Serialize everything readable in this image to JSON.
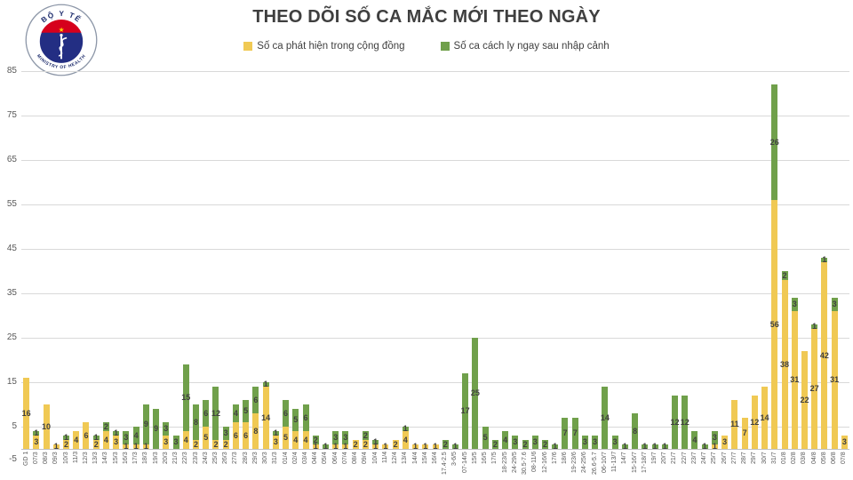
{
  "logo": {
    "top_text": "BỘ Y TẾ",
    "bottom_text": "MINISTRY OF HEALTH",
    "ring_color": "#8d97a8",
    "disc_color": "#232e83",
    "band_color": "#d6001c",
    "star_color": "#ffd500"
  },
  "chart_data": {
    "type": "bar",
    "stacked": true,
    "title": "THEO DÕI SỐ CA MẮC MỚI THEO NGÀY",
    "legend_position": "top",
    "grid": true,
    "grid_color": "#d9d9d9",
    "ylim": [
      -5,
      85
    ],
    "y_ticks": [
      85,
      75,
      65,
      55,
      45,
      35,
      25,
      15,
      5,
      -5
    ],
    "categories": [
      "GD 1",
      "07/3",
      "08/3",
      "09/3",
      "10/3",
      "11/3",
      "12/3",
      "13/3",
      "14/3",
      "15/3",
      "16/3",
      "17/3",
      "18/3",
      "19/3",
      "20/3",
      "21/3",
      "22/3",
      "23/3",
      "24/3",
      "25/3",
      "26/3",
      "27/3",
      "28/3",
      "29/3",
      "30/3",
      "31/3",
      "01/4",
      "02/4",
      "03/4",
      "04/4",
      "05/4",
      "06/4",
      "07/4",
      "08/4",
      "09/4",
      "10/4",
      "11/4",
      "12/4",
      "13/4",
      "14/4",
      "15/4",
      "16/4",
      "17.4-2.5",
      "3-6/5",
      "07-14/5",
      "15/5",
      "16/5",
      "17/5",
      "18-23/5",
      "24-29/5",
      "30.5-7.6",
      "08-11/6",
      "12-16/6",
      "17/6",
      "18/6",
      "19-23/6",
      "24-25/6",
      "26.6-5.7",
      "06-10/7",
      "11-13/7",
      "14/7",
      "15-16/7",
      "17-18/7",
      "19/7",
      "20/7",
      "21/7",
      "22/7",
      "23/7",
      "24/7",
      "25/7",
      "26/7",
      "27/7",
      "28/7",
      "29/7",
      "30/7",
      "31/7",
      "01/8",
      "02/8",
      "03/8",
      "04/8",
      "05/8",
      "06/8",
      "07/8"
    ],
    "series": [
      {
        "name": "Số ca phát hiện trong cộng đồng",
        "color": "#F0C954",
        "values": [
          16,
          3,
          10,
          1,
          2,
          4,
          6,
          2,
          4,
          3,
          1,
          1,
          1,
          0,
          3,
          0,
          4,
          2,
          5,
          2,
          2,
          6,
          6,
          8,
          14,
          3,
          5,
          4,
          4,
          1,
          0,
          1,
          1,
          2,
          2,
          1,
          1,
          2,
          4,
          1,
          1,
          1,
          0,
          0,
          0,
          0,
          0,
          0,
          0,
          0,
          0,
          0,
          0,
          0,
          0,
          0,
          0,
          0,
          0,
          0,
          0,
          0,
          0,
          0,
          0,
          0,
          0,
          0,
          0,
          1,
          3,
          11,
          7,
          12,
          14,
          56,
          38,
          31,
          22,
          27,
          42,
          31,
          3
        ]
      },
      {
        "name": "Số ca cách ly ngay sau nhập cảnh",
        "color": "#70A04B",
        "values": [
          0,
          1,
          0,
          0,
          1,
          0,
          0,
          1,
          2,
          1,
          3,
          4,
          9,
          9,
          3,
          3,
          15,
          8,
          6,
          12,
          3,
          4,
          5,
          6,
          1,
          1,
          6,
          5,
          6,
          2,
          1,
          3,
          3,
          0,
          2,
          1,
          0,
          0,
          1,
          0,
          0,
          0,
          2,
          1,
          17,
          25,
          5,
          2,
          4,
          3,
          2,
          3,
          2,
          1,
          7,
          7,
          3,
          3,
          14,
          3,
          1,
          8,
          1,
          1,
          1,
          12,
          12,
          4,
          1,
          3,
          0,
          0,
          0,
          0,
          0,
          26,
          2,
          3,
          0,
          1,
          1,
          3,
          0
        ]
      }
    ],
    "data_labels": "shown for every non-zero segment, centered in segment"
  }
}
